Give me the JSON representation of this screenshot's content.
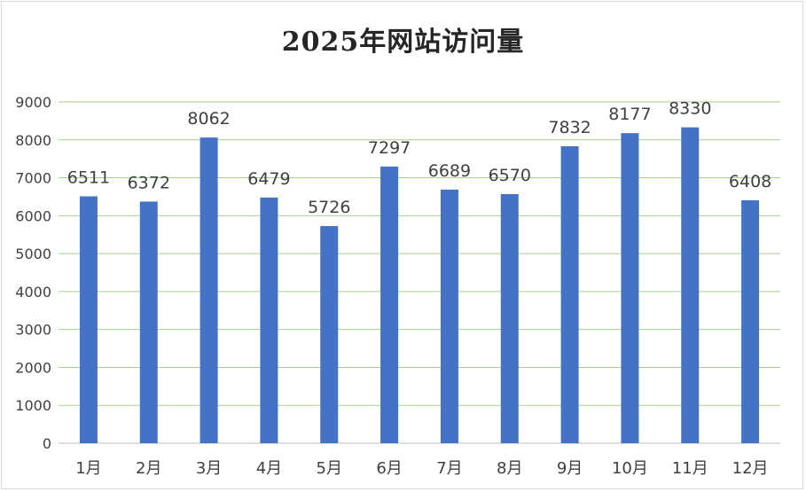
{
  "chart_data": {
    "type": "bar",
    "title": "2025年网站访问量",
    "xlabel": "",
    "ylabel": "",
    "categories": [
      "1月",
      "2月",
      "3月",
      "4月",
      "5月",
      "6月",
      "7月",
      "8月",
      "9月",
      "10月",
      "11月",
      "12月"
    ],
    "values": [
      6511,
      6372,
      8062,
      6479,
      5726,
      7297,
      6689,
      6570,
      7832,
      8177,
      8330,
      6408
    ],
    "ylim": [
      0,
      9000
    ],
    "yticks": [
      0,
      1000,
      2000,
      3000,
      4000,
      5000,
      6000,
      7000,
      8000,
      9000
    ],
    "grid": true,
    "legend": "none",
    "colors": {
      "bar": "#4472c4",
      "gridline": "#a9d18e",
      "axis": "#bfbfbf",
      "text": "#404040"
    }
  }
}
